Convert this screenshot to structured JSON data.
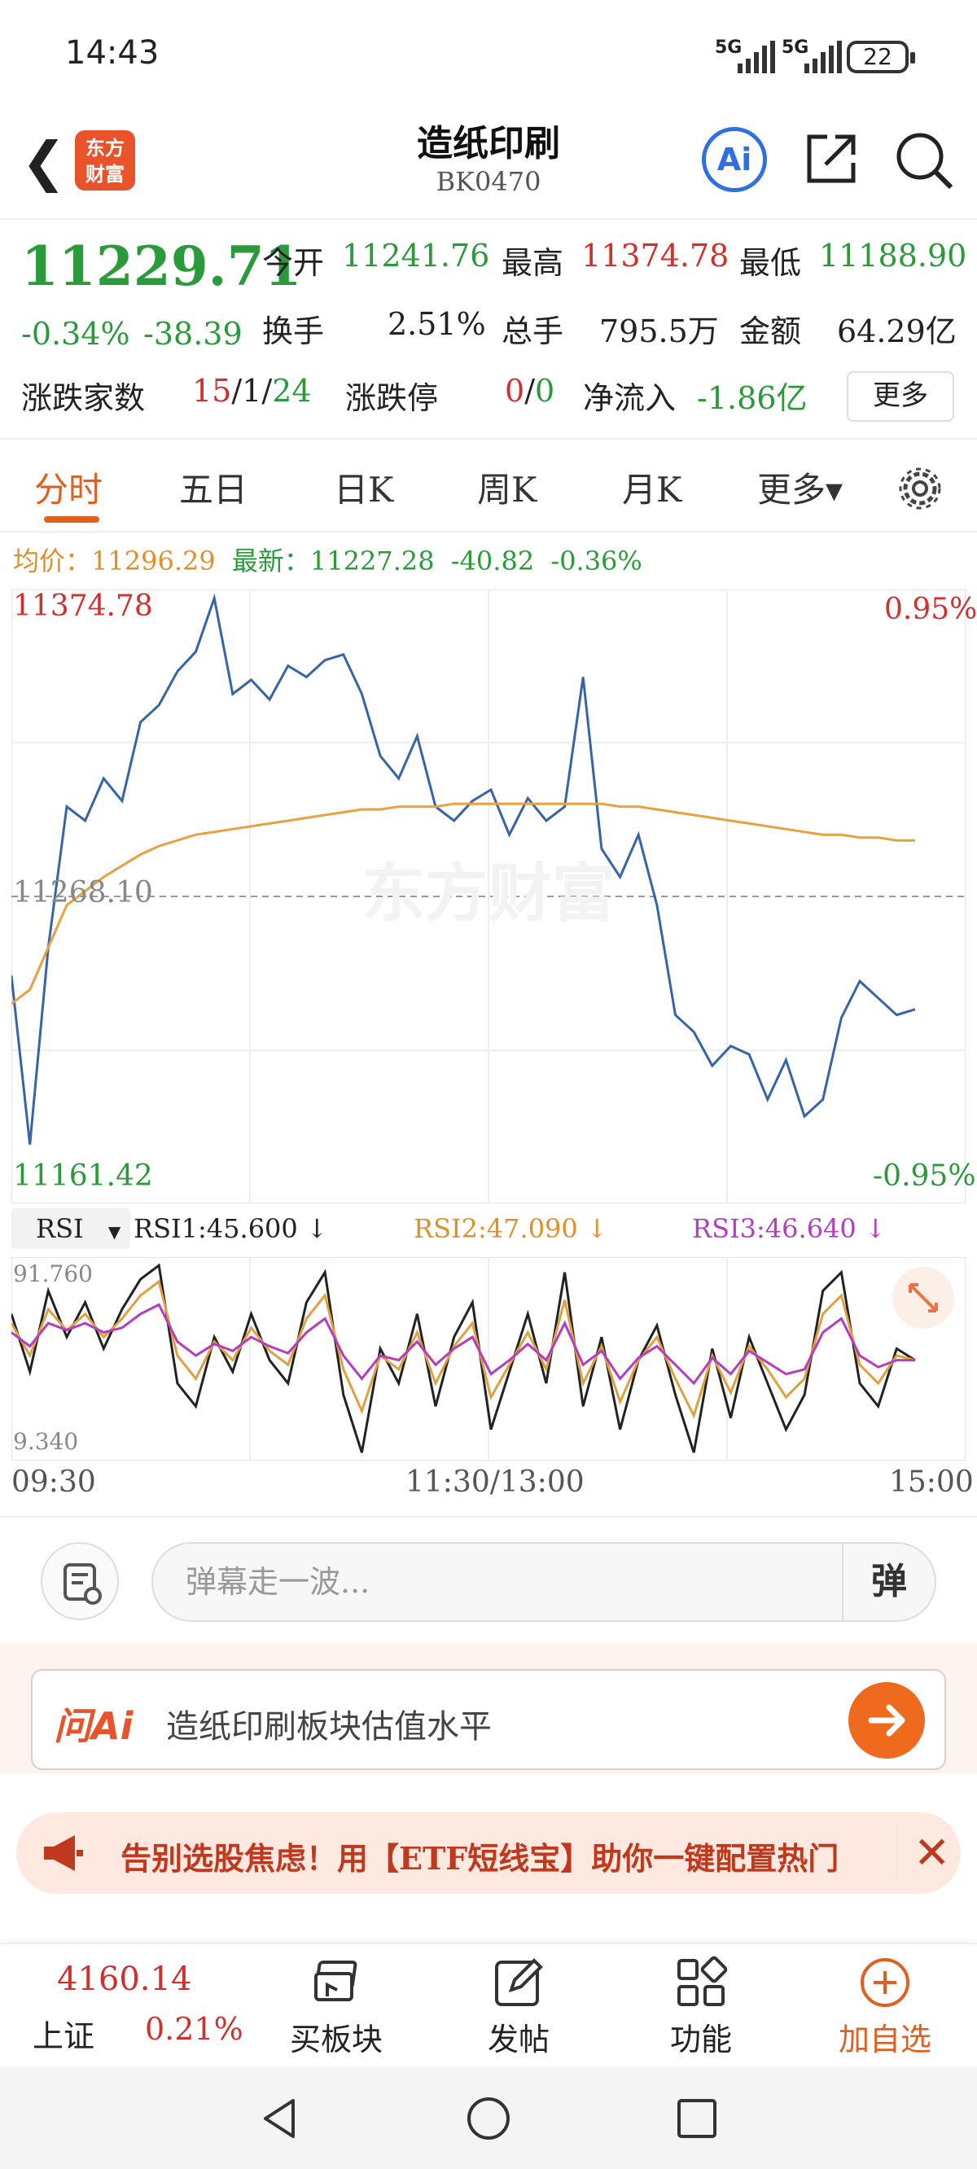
{
  "status_bar": {
    "time": "14:43",
    "network1": "5G",
    "network2": "5G",
    "battery": "22"
  },
  "header": {
    "back_glyph": "❮",
    "logo_line1": "东方",
    "logo_line2": "财富",
    "title": "造纸印刷",
    "code": "BK0470",
    "ai_label": "Ai"
  },
  "quote": {
    "price": "11229.71",
    "change_pct": "-0.34%",
    "change_abs": "-38.39",
    "open_label": "今开",
    "open": "11241.76",
    "high_label": "最高",
    "high": "11374.78",
    "low_label": "最低",
    "low": "11188.90",
    "turnover_label": "换手",
    "turnover": "2.51%",
    "volume_label": "总手",
    "volume": "795.5万",
    "amount_label": "金额",
    "amount": "64.29亿",
    "breadth_label": "涨跌家数",
    "breadth_up": "15",
    "breadth_sep1": "/",
    "breadth_flat": "1",
    "breadth_sep2": "/",
    "breadth_down": "24",
    "limit_label": "涨跌停",
    "limit_up": "0",
    "limit_sep": "/",
    "limit_down": "0",
    "netflow_label": "净流入",
    "netflow": "-1.86亿",
    "more_label": "更多"
  },
  "tabs": [
    {
      "label": "分时"
    },
    {
      "label": "五日"
    },
    {
      "label": "日K"
    },
    {
      "label": "周K"
    },
    {
      "label": "月K"
    },
    {
      "label": "更多▾"
    }
  ],
  "info_line": {
    "avg_label": "均价：",
    "avg_value": "11296.29",
    "latest_label": "最新：",
    "latest_value": "11227.28",
    "latest_chg": "-40.82",
    "latest_pct": "-0.36%"
  },
  "chart_labels": {
    "y_max": "11374.78",
    "y_mid": "11268.10",
    "y_min": "11161.42",
    "pct_max": "0.95%",
    "pct_min": "-0.95%",
    "watermark": "东方财富"
  },
  "rsi": {
    "selector": "RSI",
    "rsi1": "RSI1:45.600 ↓",
    "rsi2": "RSI2:47.090 ↓",
    "rsi3": "RSI3:46.640 ↓",
    "y_max": "91.760",
    "y_min": "9.340"
  },
  "time_axis": {
    "start": "09:30",
    "mid": "11:30/13:00",
    "end": "15:00"
  },
  "chart_data": {
    "type": "line",
    "title": "",
    "ylim": [
      11161.42,
      11374.78
    ],
    "x_range": [
      "09:30",
      "15:00"
    ],
    "series": [
      {
        "name": "",
        "color": "#3565a8",
        "values": [
          11240,
          11180,
          11250,
          11300,
          11295,
          11310,
          11302,
          11330,
          11336,
          11348,
          11355,
          11374,
          11340,
          11345,
          11338,
          11350,
          11346,
          11352,
          11354,
          11340,
          11318,
          11310,
          11325,
          11300,
          11295,
          11302,
          11306,
          11290,
          11303,
          11295,
          11300,
          11346,
          11285,
          11275,
          11290,
          11265,
          11226,
          11220,
          11208,
          11215,
          11212,
          11196,
          11210,
          11190,
          11196,
          11225,
          11238,
          11232,
          11226,
          11228
        ]
      },
      {
        "name": "",
        "color": "#e8a040",
        "values": [
          11230,
          11235,
          11250,
          11265,
          11270,
          11275,
          11279,
          11283,
          11286,
          11288,
          11290,
          11291,
          11292,
          11293,
          11294,
          11295,
          11296,
          11297,
          11298,
          11299,
          11299,
          11300,
          11300,
          11300,
          11301,
          11301,
          11301,
          11301,
          11301,
          11301,
          11301,
          11301,
          11301,
          11300,
          11300,
          11299,
          11298,
          11297,
          11296,
          11295,
          11294,
          11293,
          11292,
          11291,
          11290,
          11290,
          11289,
          11289,
          11288,
          11288
        ]
      }
    ],
    "rsi_ylim": [
      9.34,
      91.76
    ],
    "rsi_series": [
      {
        "name": "RSI1",
        "color": "#222222",
        "values": [
          70,
          45,
          80,
          60,
          75,
          55,
          72,
          85,
          91,
          40,
          30,
          60,
          45,
          70,
          50,
          40,
          75,
          88,
          35,
          10,
          55,
          40,
          70,
          30,
          60,
          75,
          20,
          45,
          70,
          40,
          88,
          30,
          60,
          20,
          50,
          65,
          35,
          10,
          55,
          25,
          60,
          40,
          20,
          35,
          80,
          88,
          40,
          30,
          55,
          50
        ]
      },
      {
        "name": "RSI2",
        "color": "#e0a040",
        "values": [
          66,
          52,
          72,
          63,
          70,
          60,
          68,
          78,
          84,
          52,
          42,
          58,
          50,
          64,
          54,
          48,
          68,
          78,
          46,
          28,
          52,
          46,
          62,
          40,
          56,
          66,
          34,
          48,
          62,
          46,
          76,
          40,
          56,
          32,
          50,
          60,
          42,
          26,
          52,
          36,
          56,
          46,
          34,
          42,
          70,
          78,
          48,
          40,
          52,
          50
        ]
      },
      {
        "name": "RSI3",
        "color": "#b43cc0",
        "values": [
          62,
          56,
          66,
          63,
          66,
          62,
          64,
          70,
          74,
          58,
          52,
          57,
          54,
          60,
          56,
          53,
          62,
          68,
          52,
          42,
          52,
          50,
          58,
          48,
          55,
          60,
          44,
          50,
          57,
          50,
          66,
          48,
          54,
          42,
          51,
          56,
          48,
          40,
          51,
          44,
          54,
          49,
          44,
          46,
          62,
          68,
          52,
          47,
          50,
          50
        ]
      }
    ]
  },
  "comment_bar": {
    "placeholder": "弹幕走一波...",
    "danmu_label": "弹"
  },
  "ask_ai": {
    "logo": "问Ai",
    "question": "造纸印刷板块估值水平"
  },
  "banner": {
    "text": "告别选股焦虑！用【ETF短线宝】助你一键配置热门",
    "close_glyph": "✕"
  },
  "bottom_bar": {
    "index_value": "4160.14",
    "index_name": "上证",
    "index_pct": "0.21%",
    "items": [
      {
        "label": "买板块"
      },
      {
        "label": "发帖"
      },
      {
        "label": "功能"
      },
      {
        "label": "加自选"
      }
    ]
  },
  "colors": {
    "up": "#d0312d",
    "down": "#2a9a3a",
    "accent": "#e06020",
    "price_line": "#3565a8",
    "avg_line": "#e8a040"
  }
}
